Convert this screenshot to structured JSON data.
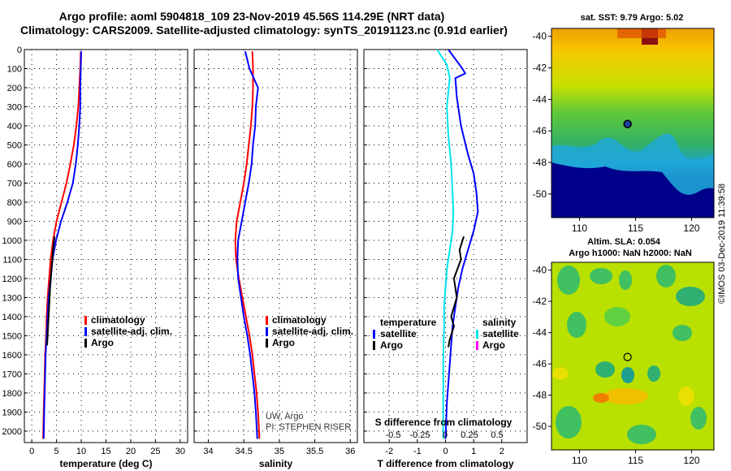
{
  "title_line1": "Argo profile: aoml 5904818_109 23-Nov-2019 45.56S 114.29E (NRT data)",
  "title_line2": "Climatology: CARS2009. Satellite-adjusted climatology: synTS_20191123.nc (0.91d earlier)",
  "credit_vertical": "©IMOS 03-Dec-2019 11:39:58",
  "colors": {
    "climatology": "#ff0000",
    "satellite": "#0000ff",
    "argo": "#000000",
    "satellite_salinity": "#00e5ee",
    "argo_salinity": "#ff00ff"
  },
  "chart_data": [
    {
      "type": "line",
      "id": "temperature",
      "xlabel": "temperature (deg C)",
      "xlim": [
        -1.5,
        31.5
      ],
      "xticks": [
        0,
        5,
        10,
        15,
        20,
        25,
        30
      ],
      "ylim": [
        0,
        2060
      ],
      "yticks": [
        0,
        100,
        200,
        300,
        400,
        500,
        600,
        700,
        800,
        900,
        1000,
        1100,
        1200,
        1300,
        1400,
        1500,
        1600,
        1700,
        1800,
        1900,
        2000
      ],
      "y_inverted": true,
      "grid": true,
      "legend": [
        "climatology",
        "satellite-adj. clim.",
        "Argo"
      ],
      "series": [
        {
          "name": "climatology",
          "color": "#ff0000",
          "x": [
            9.9,
            9.8,
            9.6,
            9.4,
            9.0,
            8.5,
            7.8,
            7.0,
            6.0,
            5.0,
            4.3,
            3.8,
            3.5,
            3.2,
            3.0,
            2.9,
            2.7,
            2.6,
            2.5,
            2.4,
            2.3
          ],
          "y": [
            10,
            100,
            200,
            300,
            400,
            500,
            600,
            700,
            800,
            900,
            1000,
            1100,
            1200,
            1300,
            1400,
            1500,
            1600,
            1700,
            1800,
            1900,
            2040
          ]
        },
        {
          "name": "satellite-adj. clim.",
          "color": "#0000ff",
          "x": [
            10.0,
            9.9,
            9.8,
            9.8,
            9.6,
            9.3,
            8.9,
            8.3,
            7.2,
            5.9,
            4.9,
            4.2,
            3.8,
            3.4,
            3.2,
            3.0,
            2.8,
            2.7,
            2.6,
            2.5,
            2.4
          ],
          "y": [
            10,
            100,
            200,
            300,
            400,
            500,
            600,
            700,
            800,
            900,
            1000,
            1100,
            1200,
            1300,
            1400,
            1500,
            1600,
            1700,
            1800,
            1900,
            2040
          ]
        },
        {
          "name": "Argo",
          "color": "#000000",
          "x": [
            4.6,
            4.3,
            4.0,
            3.7,
            3.5,
            3.3,
            3.1
          ],
          "y": [
            980,
            1050,
            1150,
            1250,
            1350,
            1450,
            1550
          ]
        }
      ]
    },
    {
      "type": "line",
      "id": "salinity",
      "xlabel": "salinity",
      "xlim": [
        33.8,
        36.1
      ],
      "xticks": [
        34,
        34.5,
        35,
        35.5,
        36
      ],
      "ylim": [
        0,
        2060
      ],
      "y_inverted": true,
      "grid": true,
      "legend": [
        "climatology",
        "satellite-adj. clim.",
        "Argo"
      ],
      "annotation": [
        "UW, Argo",
        "PI: STEPHEN RISER"
      ],
      "series": [
        {
          "name": "climatology",
          "color": "#ff0000",
          "x": [
            34.62,
            34.63,
            34.63,
            34.62,
            34.6,
            34.57,
            34.54,
            34.5,
            34.45,
            34.4,
            34.38,
            34.39,
            34.43,
            34.48,
            34.53,
            34.58,
            34.62,
            34.65,
            34.68,
            34.7,
            34.72
          ],
          "y": [
            10,
            100,
            200,
            300,
            400,
            500,
            600,
            700,
            800,
            900,
            1000,
            1100,
            1200,
            1300,
            1400,
            1500,
            1600,
            1700,
            1800,
            1900,
            2040
          ]
        },
        {
          "name": "satellite-adj. clim.",
          "color": "#0000ff",
          "x": [
            34.52,
            34.58,
            34.7,
            34.67,
            34.66,
            34.63,
            34.61,
            34.57,
            34.52,
            34.47,
            34.42,
            34.41,
            34.42,
            34.46,
            34.5,
            34.55,
            34.59,
            34.62,
            34.65,
            34.67,
            34.69
          ],
          "y": [
            10,
            100,
            200,
            300,
            400,
            500,
            600,
            700,
            800,
            900,
            1000,
            1100,
            1200,
            1300,
            1400,
            1500,
            1600,
            1700,
            1800,
            1900,
            2040
          ]
        }
      ]
    },
    {
      "type": "line",
      "id": "difference",
      "xlabel": "T difference from climatology",
      "xlabel_top": "S difference from climatology",
      "xlim": [
        -2.9,
        2.9
      ],
      "xticks": [
        -2,
        -1,
        0,
        1,
        2
      ],
      "xticks_top": [
        "-0.5",
        "-0.25",
        "0",
        "0.25",
        "0.5"
      ],
      "ylim": [
        0,
        2060
      ],
      "y_inverted": true,
      "grid": true,
      "legend_temperature_title": "temperature",
      "legend_salinity_title": "salinity",
      "legend_temperature": [
        "satellite",
        "Argo"
      ],
      "legend_salinity": [
        "satellite",
        "Argo"
      ],
      "series": [
        {
          "name": "temperature satellite",
          "color": "#0000ff",
          "x": [
            0.1,
            0.6,
            0.7,
            0.35,
            0.4,
            0.55,
            0.8,
            1.0,
            1.1,
            1.15,
            1.0,
            0.8,
            0.6,
            0.45,
            0.35,
            0.25,
            0.2,
            0.15,
            0.1,
            0.05,
            0.0
          ],
          "y": [
            0,
            100,
            125,
            150,
            250,
            400,
            550,
            650,
            750,
            850,
            950,
            1050,
            1150,
            1250,
            1350,
            1450,
            1550,
            1650,
            1750,
            1850,
            2040
          ]
        },
        {
          "name": "temperature Argo",
          "color": "#000000",
          "x": [
            0.65,
            0.5,
            0.55,
            0.3,
            0.4,
            0.2,
            0.3,
            0.15,
            0.1
          ],
          "y": [
            980,
            1050,
            1100,
            1200,
            1300,
            1400,
            1450,
            1520,
            1560
          ]
        },
        {
          "name": "salinity satellite",
          "color": "#00e5ee",
          "x": [
            -0.3,
            0.05,
            0.15,
            0.05,
            0.1,
            0.2,
            0.25,
            0.28,
            0.25,
            0.15,
            0.05,
            0.0,
            -0.05,
            -0.05,
            -0.07,
            -0.08,
            -0.08,
            -0.08,
            -0.08,
            -0.08,
            -0.08
          ],
          "y": [
            0,
            80,
            150,
            300,
            450,
            600,
            750,
            850,
            950,
            1050,
            1150,
            1250,
            1350,
            1450,
            1550,
            1650,
            1750,
            1850,
            1950,
            2000,
            2040
          ]
        }
      ]
    },
    {
      "type": "heatmap",
      "id": "sst_map",
      "title": "sat. SST: 9.79 Argo: 5.02",
      "xlim": [
        107.5,
        122
      ],
      "ylim": [
        -51.5,
        -39.5
      ],
      "xticks": [
        110,
        115,
        120
      ],
      "yticks": [
        -40,
        -42,
        -44,
        -46,
        -48,
        -50
      ],
      "marker": {
        "lon": 114.29,
        "lat": -45.56
      }
    },
    {
      "type": "heatmap",
      "id": "sla_map",
      "title": "Altim. SLA: 0.054",
      "subtitle": "Argo h1000: NaN h2000: NaN",
      "xlim": [
        107.5,
        122
      ],
      "ylim": [
        -51.5,
        -39.5
      ],
      "xticks": [
        110,
        115,
        120
      ],
      "yticks": [
        -40,
        -42,
        -44,
        -46,
        -48,
        -50
      ],
      "marker": {
        "lon": 114.29,
        "lat": -45.56
      }
    }
  ]
}
